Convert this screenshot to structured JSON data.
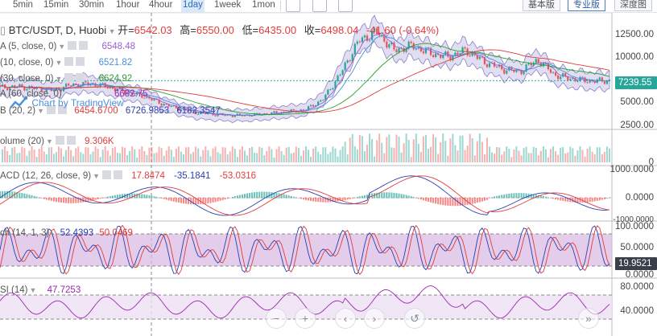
{
  "toolbar": {
    "timeframes": [
      "5min",
      "15min",
      "30min",
      "1hour",
      "4hour",
      "1day",
      "1week",
      "1mon"
    ],
    "active_timeframe": "1day",
    "views": [
      "基本版",
      "专业版",
      "深度图"
    ],
    "active_view": "专业版"
  },
  "header": {
    "symbol": "BTC/USDT, D, Huobi",
    "open_label": "开=",
    "open": "6542.03",
    "high_label": "高=",
    "high": "6550.00",
    "low_label": "低=",
    "low": "6435.00",
    "close_label": "收=",
    "close": "6498.04",
    "change": "-41.60 (-0.64%)"
  },
  "indicators": {
    "ma5": {
      "label": "A (5, close, 0)",
      "value": "6548.48",
      "color": "#9c5fd0"
    },
    "ma10": {
      "label": "(10, close, 0)",
      "value": "6521.82",
      "color": "#4a8fd8"
    },
    "ma30": {
      "label": "(30, close, 0)",
      "value": "6624.92",
      "color": "#2ca02c"
    },
    "bb": {
      "label": "",
      "value": "6682.75",
      "color": "#9c27b0"
    },
    "ma60": {
      "label": "A (60, close, 0)",
      "value": "6454.6700",
      "color": "#e03c3c"
    },
    "bb2": {
      "label": "B (20, 2)",
      "values": [
        "6454.6700",
        "6726.9853",
        "6182.3547"
      ]
    },
    "volume": {
      "label": "olume (20)",
      "value": "9.306K"
    },
    "macd": {
      "label": "ACD (12, 26, close, 9)",
      "values": [
        "17.8474",
        "-35.1841",
        "-53.0316"
      ]
    },
    "stoch": {
      "label": "ch (14, 1, 3)",
      "values": [
        "52.4393",
        "50.0469"
      ]
    },
    "rsi": {
      "label": "SI (14)",
      "value": "47.7253"
    }
  },
  "watermark": "Chart by TradingView",
  "price_axis": {
    "labels": [
      "12500.00",
      "10000.00",
      "7500.00",
      "5000.00",
      "2500.00"
    ],
    "current_price": "7239.55",
    "current_color": "#26a69a"
  },
  "volume_axis": {
    "labels": [
      "0"
    ]
  },
  "macd_axis": {
    "labels": [
      "1000.0000",
      "0.0000",
      "-1000.0000"
    ]
  },
  "stoch_axis": {
    "labels": [
      "100.0000",
      "50.0000",
      "19.9521",
      "0.0000"
    ]
  },
  "rsi_axis": {
    "labels": [
      "80.0000",
      "40.0000"
    ]
  },
  "nav": [
    "−",
    "+",
    "‹",
    "›",
    "↺"
  ],
  "colors": {
    "up": "#26a69a",
    "down": "#ef5350",
    "band": "#c9c2e8",
    "stoch_fill": "#d9b8e3",
    "rsi_fill": "#ece0f2"
  }
}
